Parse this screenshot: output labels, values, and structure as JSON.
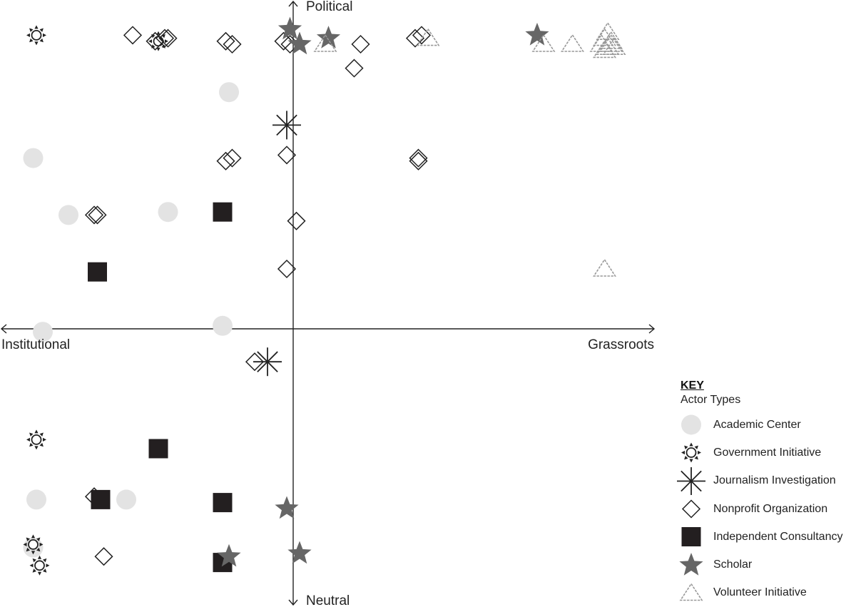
{
  "chart_data": {
    "type": "scatter",
    "x_axis": {
      "negative_label": "Institutional",
      "positive_label": "Grassroots",
      "range": [
        -1,
        1
      ]
    },
    "y_axis": {
      "negative_label": "Neutral",
      "positive_label": "Political",
      "range": [
        -1,
        1
      ]
    },
    "legend": {
      "heading": "KEY",
      "subheading": "Actor Types",
      "placement": "bottom-right"
    },
    "series": [
      {
        "name": "Academic Center",
        "symbol": "circle",
        "color": "#e3e3e3",
        "points": [
          [
            -0.2,
            0.79
          ],
          [
            -0.81,
            0.57
          ],
          [
            -0.7,
            0.38
          ],
          [
            -0.39,
            0.39
          ],
          [
            -0.78,
            -0.01
          ],
          [
            -0.22,
            0.01
          ],
          [
            -0.8,
            -0.57
          ],
          [
            -0.52,
            -0.57
          ],
          [
            -0.81,
            -0.73
          ]
        ]
      },
      {
        "name": "Government Initiative",
        "symbol": "sun",
        "color": "#222222",
        "points": [
          [
            -0.8,
            0.98
          ],
          [
            -0.42,
            0.96
          ],
          [
            -0.8,
            -0.37
          ],
          [
            -0.81,
            -0.72
          ],
          [
            -0.79,
            -0.79
          ]
        ]
      },
      {
        "name": "Journalism Investigation",
        "symbol": "asterisk",
        "color": "#222222",
        "points": [
          [
            -0.02,
            0.68
          ],
          [
            -0.08,
            -0.11
          ]
        ]
      },
      {
        "name": "Nonprofit Organization",
        "symbol": "diamond",
        "color": "#222222",
        "points": [
          [
            -0.5,
            0.98
          ],
          [
            -0.4,
            0.97
          ],
          [
            -0.39,
            0.97
          ],
          [
            -0.43,
            0.96
          ],
          [
            -0.21,
            0.96
          ],
          [
            -0.19,
            0.95
          ],
          [
            -0.03,
            0.96
          ],
          [
            -0.01,
            0.95
          ],
          [
            0.21,
            0.95
          ],
          [
            0.19,
            0.87
          ],
          [
            0.38,
            0.97
          ],
          [
            0.4,
            0.98
          ],
          [
            -0.02,
            0.58
          ],
          [
            -0.21,
            0.56
          ],
          [
            -0.19,
            0.57
          ],
          [
            0.39,
            0.56
          ],
          [
            0.39,
            0.57
          ],
          [
            -0.62,
            0.38
          ],
          [
            -0.61,
            0.38
          ],
          [
            0.01,
            0.36
          ],
          [
            -0.02,
            0.2
          ],
          [
            -0.12,
            -0.11
          ],
          [
            -0.62,
            -0.56
          ],
          [
            -0.59,
            -0.76
          ]
        ]
      },
      {
        "name": "Independent Consultancy",
        "symbol": "square",
        "color": "#231f20",
        "points": [
          [
            -0.22,
            0.39
          ],
          [
            -0.61,
            0.19
          ],
          [
            -0.42,
            -0.4
          ],
          [
            -0.6,
            -0.57
          ],
          [
            -0.22,
            -0.58
          ],
          [
            -0.22,
            -0.78
          ]
        ]
      },
      {
        "name": "Scholar",
        "symbol": "star",
        "color": "#666666",
        "points": [
          [
            -0.01,
            1.0
          ],
          [
            0.02,
            0.95
          ],
          [
            0.11,
            0.97
          ],
          [
            0.76,
            0.98
          ],
          [
            -0.02,
            -0.6
          ],
          [
            0.02,
            -0.75
          ],
          [
            -0.2,
            -0.76
          ]
        ]
      },
      {
        "name": "Volunteer Initiative",
        "symbol": "triangle",
        "color": "#999999",
        "points": [
          [
            0.1,
            0.95
          ],
          [
            0.42,
            0.97
          ],
          [
            0.78,
            0.95
          ],
          [
            0.87,
            0.95
          ],
          [
            0.97,
            0.97
          ],
          [
            0.98,
            0.99
          ],
          [
            0.99,
            0.96
          ],
          [
            0.96,
            0.95
          ],
          [
            0.97,
            0.93
          ],
          [
            0.98,
            0.94
          ],
          [
            1.0,
            0.94
          ],
          [
            0.99,
            0.95
          ],
          [
            0.97,
            0.2
          ]
        ]
      }
    ]
  }
}
